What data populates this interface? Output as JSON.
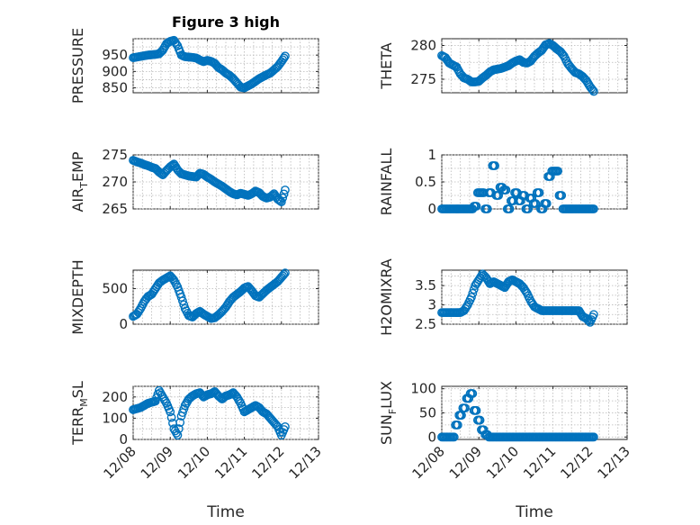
{
  "figure": {
    "title": "Figure 3 high",
    "xlabel": "Time",
    "x_ticks": [
      "12/08",
      "12/09",
      "12/10",
      "12/11",
      "12/12",
      "12/13"
    ],
    "marker_color": "#0072bd"
  },
  "chart_data": [
    {
      "type": "scatter",
      "id": "pressure",
      "ylabel": "PRESSURE",
      "sub": "",
      "ylim": [
        835,
        1000
      ],
      "yticks": [
        850,
        900,
        950
      ],
      "xlim": [
        0,
        5
      ],
      "grid": true,
      "x": [
        0,
        0.1,
        0.2,
        0.3,
        0.4,
        0.5,
        0.6,
        0.7,
        0.8,
        0.9,
        1.0,
        1.1,
        1.2,
        1.3,
        1.4,
        1.5,
        1.6,
        1.7,
        1.8,
        1.9,
        2.0,
        2.1,
        2.2,
        2.3,
        2.4,
        2.5,
        2.6,
        2.7,
        2.8,
        2.9,
        3.0,
        3.1,
        3.2,
        3.3,
        3.4,
        3.5,
        3.6,
        3.7,
        3.8,
        3.9,
        4.0,
        4.1
      ],
      "y": [
        942,
        944,
        946,
        948,
        950,
        951,
        952,
        954,
        965,
        985,
        992,
        995,
        978,
        950,
        945,
        944,
        943,
        941,
        935,
        930,
        934,
        931,
        925,
        912,
        905,
        895,
        888,
        878,
        865,
        852,
        850,
        856,
        862,
        870,
        878,
        884,
        890,
        895,
        905,
        915,
        930,
        947
      ]
    },
    {
      "type": "scatter",
      "id": "theta",
      "ylabel": "THETA",
      "sub": "",
      "ylim": [
        273,
        281
      ],
      "yticks": [
        275,
        280
      ],
      "xlim": [
        0,
        5
      ],
      "grid": true,
      "x": [
        0,
        0.1,
        0.2,
        0.3,
        0.4,
        0.5,
        0.6,
        0.7,
        0.8,
        0.9,
        1.0,
        1.1,
        1.2,
        1.3,
        1.4,
        1.5,
        1.6,
        1.7,
        1.8,
        1.9,
        2.0,
        2.1,
        2.2,
        2.3,
        2.4,
        2.5,
        2.6,
        2.7,
        2.8,
        2.9,
        3.0,
        3.1,
        3.2,
        3.3,
        3.4,
        3.5,
        3.6,
        3.7,
        3.8,
        3.9,
        4.0,
        4.1
      ],
      "y": [
        278.5,
        278.2,
        277.4,
        277.1,
        276.8,
        275.8,
        275.2,
        275.0,
        274.6,
        274.6,
        274.7,
        275.2,
        275.6,
        276.1,
        276.4,
        276.5,
        276.6,
        276.8,
        277.0,
        277.4,
        277.7,
        277.9,
        277.5,
        277.4,
        277.7,
        278.4,
        278.9,
        279.3,
        280.1,
        280.3,
        280.0,
        279.5,
        279.1,
        278.4,
        277.3,
        276.6,
        276.0,
        275.8,
        275.4,
        274.8,
        273.9,
        273.2
      ]
    },
    {
      "type": "scatter",
      "id": "air_temp",
      "ylabel": "AIR",
      "sub": "T",
      "ylabel_rest": "EMP",
      "ylim": [
        265,
        275
      ],
      "yticks": [
        265,
        270,
        275
      ],
      "xlim": [
        0,
        5
      ],
      "grid": true,
      "x": [
        0,
        0.1,
        0.2,
        0.3,
        0.4,
        0.5,
        0.6,
        0.7,
        0.8,
        0.9,
        1.0,
        1.1,
        1.2,
        1.3,
        1.4,
        1.5,
        1.6,
        1.7,
        1.8,
        1.9,
        2.0,
        2.1,
        2.2,
        2.3,
        2.4,
        2.5,
        2.6,
        2.7,
        2.8,
        2.9,
        3.0,
        3.1,
        3.2,
        3.3,
        3.4,
        3.5,
        3.6,
        3.7,
        3.8,
        3.9,
        4.0,
        4.1
      ],
      "y": [
        274.0,
        273.7,
        273.5,
        273.2,
        273.0,
        272.7,
        272.5,
        271.8,
        271.3,
        272.1,
        272.8,
        273.3,
        272.2,
        271.5,
        271.3,
        271.1,
        271.0,
        270.9,
        271.6,
        271.4,
        270.9,
        270.5,
        270.0,
        269.6,
        269.2,
        268.7,
        268.2,
        267.8,
        267.6,
        267.9,
        267.7,
        267.5,
        267.8,
        268.3,
        268.0,
        267.3,
        267.0,
        267.2,
        267.8,
        266.8,
        266.3,
        268.5
      ]
    },
    {
      "type": "scatter",
      "id": "rainfall",
      "ylabel": "RAINFALL",
      "sub": "",
      "ylim": [
        0,
        1
      ],
      "yticks": [
        0,
        0.5,
        1
      ],
      "ytick_labels": [
        "0",
        "0.5",
        "1"
      ],
      "xlim": [
        0,
        5
      ],
      "grid": true,
      "x": [
        0,
        0.1,
        0.2,
        0.3,
        0.4,
        0.5,
        0.6,
        0.7,
        0.8,
        0.9,
        1.0,
        1.1,
        1.2,
        1.3,
        1.4,
        1.5,
        1.6,
        1.7,
        1.8,
        1.9,
        2.0,
        2.1,
        2.2,
        2.3,
        2.4,
        2.5,
        2.6,
        2.7,
        2.8,
        2.9,
        3.0,
        3.1,
        3.2,
        3.3,
        3.4,
        3.5,
        3.6,
        3.7,
        3.8,
        3.9,
        4.0,
        4.1
      ],
      "y": [
        0,
        0,
        0,
        0,
        0,
        0,
        0,
        0,
        0,
        0.05,
        0.3,
        0.3,
        0,
        0.3,
        0.8,
        0.25,
        0.4,
        0.35,
        0,
        0.15,
        0.3,
        0.15,
        0.25,
        0,
        0.2,
        0.1,
        0.3,
        0,
        0.1,
        0.6,
        0.7,
        0.7,
        0.25,
        0,
        0,
        0,
        0,
        0,
        0,
        0,
        0,
        0
      ]
    },
    {
      "type": "scatter",
      "id": "mixdepth",
      "ylabel": "MIXDEPTH",
      "sub": "",
      "ylim": [
        0,
        760
      ],
      "yticks": [
        0,
        500
      ],
      "xlim": [
        0,
        5
      ],
      "grid": true,
      "x": [
        0,
        0.1,
        0.2,
        0.3,
        0.4,
        0.5,
        0.6,
        0.7,
        0.8,
        0.9,
        1.0,
        1.1,
        1.2,
        1.3,
        1.4,
        1.5,
        1.6,
        1.7,
        1.8,
        1.9,
        2.0,
        2.1,
        2.2,
        2.3,
        2.4,
        2.5,
        2.6,
        2.7,
        2.8,
        2.9,
        3.0,
        3.1,
        3.2,
        3.3,
        3.4,
        3.5,
        3.6,
        3.7,
        3.8,
        3.9,
        4.0,
        4.1
      ],
      "y": [
        110,
        140,
        220,
        320,
        390,
        420,
        500,
        580,
        620,
        650,
        680,
        620,
        520,
        380,
        220,
        120,
        100,
        150,
        180,
        140,
        110,
        80,
        90,
        130,
        180,
        240,
        320,
        380,
        420,
        460,
        510,
        530,
        470,
        400,
        380,
        430,
        480,
        520,
        560,
        600,
        660,
        720
      ]
    },
    {
      "type": "scatter",
      "id": "h2omixra",
      "ylabel": "H2OMIXRA",
      "sub": "",
      "ylim": [
        2.5,
        3.9
      ],
      "yticks": [
        2.5,
        3,
        3.5
      ],
      "ytick_labels": [
        "2.5",
        "3",
        "3.5"
      ],
      "xlim": [
        0,
        5
      ],
      "grid": true,
      "x": [
        0,
        0.1,
        0.2,
        0.3,
        0.4,
        0.5,
        0.6,
        0.7,
        0.8,
        0.9,
        1.0,
        1.1,
        1.2,
        1.3,
        1.4,
        1.5,
        1.6,
        1.7,
        1.8,
        1.9,
        2.0,
        2.1,
        2.2,
        2.3,
        2.4,
        2.5,
        2.6,
        2.7,
        2.8,
        2.9,
        3.0,
        3.1,
        3.2,
        3.3,
        3.4,
        3.5,
        3.6,
        3.7,
        3.8,
        3.9,
        4.0,
        4.1
      ],
      "y": [
        2.8,
        2.8,
        2.8,
        2.8,
        2.8,
        2.8,
        2.85,
        3.0,
        3.2,
        3.5,
        3.65,
        3.8,
        3.7,
        3.55,
        3.6,
        3.55,
        3.5,
        3.45,
        3.6,
        3.65,
        3.6,
        3.55,
        3.45,
        3.3,
        3.1,
        2.95,
        2.9,
        2.85,
        2.85,
        2.85,
        2.85,
        2.85,
        2.85,
        2.85,
        2.85,
        2.85,
        2.85,
        2.85,
        2.7,
        2.65,
        2.55,
        2.75
      ]
    },
    {
      "type": "scatter",
      "id": "terr_msl",
      "ylabel": "TERR",
      "sub": "M",
      "ylabel_rest": "SL",
      "ylim": [
        0,
        250
      ],
      "yticks": [
        0,
        100,
        200
      ],
      "xlim": [
        0,
        5
      ],
      "grid": true,
      "x": [
        0,
        0.1,
        0.2,
        0.3,
        0.4,
        0.5,
        0.6,
        0.7,
        0.8,
        0.9,
        1.0,
        1.1,
        1.2,
        1.3,
        1.4,
        1.5,
        1.6,
        1.7,
        1.8,
        1.9,
        2.0,
        2.1,
        2.2,
        2.3,
        2.4,
        2.5,
        2.6,
        2.7,
        2.8,
        2.9,
        3.0,
        3.1,
        3.2,
        3.3,
        3.4,
        3.5,
        3.6,
        3.7,
        3.8,
        3.9,
        4.0,
        4.1
      ],
      "y": [
        140,
        145,
        150,
        160,
        170,
        175,
        180,
        230,
        200,
        170,
        130,
        50,
        20,
        110,
        160,
        190,
        205,
        215,
        220,
        200,
        210,
        215,
        225,
        205,
        190,
        205,
        210,
        220,
        200,
        170,
        130,
        140,
        150,
        160,
        150,
        130,
        120,
        100,
        80,
        60,
        20,
        60
      ]
    },
    {
      "type": "scatter",
      "id": "sun_flux",
      "ylabel": "SUN",
      "sub": "F",
      "ylabel_rest": "LUX",
      "ylim": [
        -5,
        105
      ],
      "yticks": [
        0,
        50,
        100
      ],
      "xlim": [
        0,
        5
      ],
      "grid": true,
      "x": [
        0,
        0.1,
        0.2,
        0.3,
        0.4,
        0.5,
        0.6,
        0.7,
        0.8,
        0.9,
        1.0,
        1.1,
        1.2,
        1.3,
        1.4,
        1.5,
        1.6,
        1.7,
        1.8,
        1.9,
        2.0,
        2.1,
        2.2,
        2.3,
        2.4,
        2.5,
        2.6,
        2.7,
        2.8,
        2.9,
        3.0,
        3.1,
        3.2,
        3.3,
        3.4,
        3.5,
        3.6,
        3.7,
        3.8,
        3.9,
        4.0,
        4.1
      ],
      "y": [
        0,
        0,
        0,
        0,
        25,
        45,
        60,
        80,
        90,
        55,
        35,
        15,
        5,
        0,
        0,
        0,
        0,
        0,
        0,
        0,
        0,
        0,
        0,
        0,
        0,
        0,
        0,
        0,
        0,
        0,
        0,
        0,
        0,
        0,
        0,
        0,
        0,
        0,
        0,
        0,
        0,
        0
      ]
    }
  ]
}
